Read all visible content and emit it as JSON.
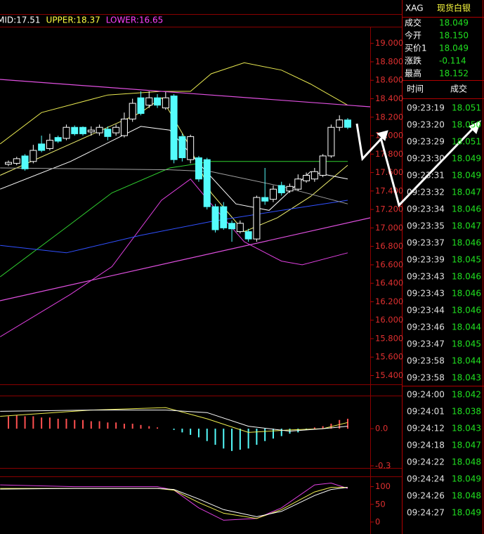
{
  "chart_data": [
    {
      "type": "candlestick",
      "legend": [
        {
          "text": "MID:17.51",
          "color": "#ffffff"
        },
        {
          "text": "UPPER:18.37",
          "color": "#ffff40"
        },
        {
          "text": "LOWER:16.65",
          "color": "#ff40ff"
        }
      ],
      "bull_color": "#ffffff",
      "bear_color": "#54fcfc",
      "open": [
        17.69,
        17.7,
        17.78,
        17.72,
        17.91,
        17.86,
        17.98,
        17.97,
        18.09,
        18.09,
        18.04,
        18.03,
        18.07,
        18.03,
        18.0,
        18.18,
        18.41,
        18.33,
        18.41,
        18.3,
        18.43,
        17.99,
        17.74,
        17.76,
        17.74,
        17.23,
        17.23,
        17.05,
        16.96,
        16.96,
        16.88,
        17.33,
        17.31,
        17.46,
        17.4,
        17.42,
        17.51,
        17.53,
        17.57,
        17.78,
        18.09,
        18.17
      ],
      "high": [
        17.73,
        17.77,
        17.8,
        17.9,
        18.0,
        18.02,
        18.0,
        18.12,
        18.11,
        18.1,
        18.1,
        18.12,
        18.1,
        18.12,
        18.25,
        18.4,
        18.48,
        18.48,
        18.45,
        18.48,
        18.45,
        18.02,
        18.01,
        17.78,
        17.76,
        17.26,
        17.28,
        17.08,
        17.08,
        16.99,
        17.35,
        17.65,
        17.46,
        17.5,
        17.48,
        17.58,
        17.6,
        17.65,
        17.8,
        18.12,
        18.22,
        18.19
      ],
      "low": [
        17.67,
        17.68,
        17.62,
        17.7,
        17.82,
        17.84,
        17.92,
        17.95,
        18.0,
        18.0,
        18.0,
        18.0,
        17.95,
        18.0,
        17.98,
        18.15,
        18.22,
        18.3,
        18.3,
        18.28,
        17.7,
        17.72,
        17.7,
        17.5,
        17.2,
        16.95,
        16.98,
        16.85,
        16.94,
        16.85,
        16.85,
        17.25,
        17.28,
        17.35,
        17.38,
        17.4,
        17.49,
        17.5,
        17.55,
        17.76,
        18.05,
        18.07
      ],
      "close": [
        17.71,
        17.75,
        17.64,
        17.84,
        17.84,
        17.95,
        17.94,
        18.09,
        18.02,
        18.02,
        18.06,
        18.09,
        17.99,
        18.09,
        18.18,
        18.35,
        18.24,
        18.41,
        18.33,
        18.41,
        17.74,
        17.76,
        17.99,
        17.53,
        17.23,
        16.98,
        17.0,
        16.99,
        17.05,
        16.88,
        17.33,
        17.29,
        17.42,
        17.38,
        17.45,
        17.53,
        17.57,
        17.61,
        17.78,
        18.09,
        18.17,
        18.09
      ],
      "lines": [
        {
          "color": "#e8e850",
          "x": [
            -1,
            4,
            12,
            18.5,
            22,
            24.5,
            28.5,
            33,
            36.5,
            41
          ],
          "values": [
            17.91,
            18.25,
            18.44,
            18.48,
            18.48,
            18.67,
            18.79,
            18.71,
            18.56,
            18.33
          ]
        },
        {
          "color": "#e040e0",
          "x": [
            -1,
            7.5,
            12.5,
            18.5,
            22,
            24.5,
            28.5,
            33,
            35.5,
            41
          ],
          "values": [
            15.82,
            16.28,
            16.58,
            17.3,
            17.53,
            17.26,
            16.85,
            16.64,
            16.6,
            16.73
          ]
        },
        {
          "color": "#f0f070",
          "x": [
            -1,
            7.5,
            16,
            18.5,
            21.5,
            24.5,
            28.5,
            32.5,
            36.5,
            41
          ],
          "values": [
            17.57,
            17.91,
            18.25,
            18.41,
            17.95,
            17.38,
            16.96,
            17.11,
            17.34,
            17.68
          ]
        },
        {
          "color": "#ffffff",
          "x": [
            -1,
            7.5,
            16,
            19.5,
            23.5,
            27.5,
            31.5,
            36.5,
            41
          ],
          "values": [
            17.42,
            17.72,
            18.1,
            18.06,
            17.65,
            17.26,
            17.19,
            17.61,
            17.53
          ]
        },
        {
          "color": "#30d030",
          "x": [
            -1,
            7.5,
            12.5,
            19.5,
            24.5,
            33,
            41
          ],
          "values": [
            16.47,
            17.04,
            17.38,
            17.65,
            17.72,
            17.72,
            17.72
          ]
        },
        {
          "color": "#3050ff",
          "x": [
            -1,
            7,
            16,
            24.5,
            33,
            41
          ],
          "values": [
            16.81,
            16.73,
            16.92,
            17.07,
            17.19,
            17.3
          ]
        },
        {
          "color": "#a0a0a0",
          "x": [
            -1,
            19.5,
            24.5,
            33,
            41
          ],
          "values": [
            17.65,
            17.63,
            17.61,
            17.45,
            17.26
          ]
        }
      ],
      "ylim": [
        15.32,
        19.15
      ],
      "yticks": [
        {
          "value": 19.0,
          "label": "19.000"
        },
        {
          "value": 18.8,
          "label": "18.800"
        },
        {
          "value": 18.6,
          "label": "18.600"
        },
        {
          "value": 18.4,
          "label": "18.400"
        },
        {
          "value": 18.2,
          "label": "18.200"
        },
        {
          "value": 18.0,
          "label": "18.000"
        },
        {
          "value": 17.8,
          "label": "17.800"
        },
        {
          "value": 17.6,
          "label": "17.600"
        },
        {
          "value": 17.4,
          "label": "17.400"
        },
        {
          "value": 17.2,
          "label": "17.200"
        },
        {
          "value": 17.0,
          "label": "17.000"
        },
        {
          "value": 16.8,
          "label": "16.800"
        },
        {
          "value": 16.6,
          "label": "16.600"
        },
        {
          "value": 16.4,
          "label": "16.400"
        },
        {
          "value": 16.2,
          "label": "16.200"
        },
        {
          "value": 16.0,
          "label": "16.000"
        },
        {
          "value": 15.8,
          "label": "15.800"
        },
        {
          "value": 15.6,
          "label": "15.600"
        },
        {
          "value": 15.4,
          "label": "15.400"
        }
      ]
    },
    {
      "type": "macd",
      "pos_color": "#ff5050",
      "neg_color": "#54fcfc",
      "values": [
        0.1,
        0.11,
        0.1,
        0.1,
        0.09,
        0.09,
        0.08,
        0.08,
        0.07,
        0.07,
        0.06,
        0.06,
        0.05,
        0.05,
        0.04,
        0.04,
        0.03,
        0.02,
        0.01,
        0.0,
        -0.01,
        -0.03,
        -0.05,
        -0.07,
        -0.1,
        -0.13,
        -0.16,
        -0.18,
        -0.17,
        -0.16,
        -0.13,
        -0.1,
        -0.08,
        -0.06,
        -0.04,
        -0.03,
        -0.01,
        0.01,
        0.02,
        0.04,
        0.07,
        0.08
      ],
      "lines": [
        {
          "color": "#f0f050",
          "x": [
            -1,
            10,
            19,
            24,
            29,
            34,
            38,
            41
          ],
          "values": [
            0.1,
            0.15,
            0.17,
            0.08,
            -0.03,
            -0.01,
            0.0,
            0.05
          ]
        },
        {
          "color": "#ffffff",
          "x": [
            -1,
            10,
            19,
            24,
            29,
            34,
            38,
            41
          ],
          "values": [
            0.14,
            0.15,
            0.15,
            0.13,
            0.02,
            -0.02,
            0.0,
            0.02
          ]
        }
      ],
      "ylim": [
        -0.3,
        0.25
      ],
      "yticks": [
        {
          "value": 0,
          "label": "0.0"
        },
        {
          "value": -0.3,
          "label": "-0.3"
        }
      ]
    },
    {
      "type": "line",
      "lines": [
        {
          "color": "#e040e0",
          "x": [
            -1,
            8,
            18,
            20,
            23,
            26,
            30,
            33,
            37,
            39,
            41
          ],
          "values": [
            105,
            100,
            100,
            90,
            40,
            5,
            10,
            40,
            105,
            110,
            95
          ]
        },
        {
          "color": "#f0f050",
          "x": [
            -1,
            8,
            18,
            20,
            23,
            26,
            30,
            33,
            37,
            39,
            41
          ],
          "values": [
            95,
            95,
            95,
            90,
            55,
            25,
            10,
            35,
            85,
            98,
            98
          ]
        },
        {
          "color": "#ffffff",
          "x": [
            -1,
            8,
            18,
            20,
            23,
            26,
            30,
            33,
            37,
            39,
            41
          ],
          "values": [
            93,
            95,
            95,
            92,
            65,
            35,
            15,
            30,
            75,
            92,
            98
          ]
        }
      ],
      "ylim": [
        -14,
        123
      ],
      "yticks": [
        100,
        50,
        0
      ]
    }
  ],
  "quote_panel": {
    "symbol": "XAG",
    "name": "现货白银",
    "value_color": "#20e020",
    "rows": [
      {
        "label": "成交",
        "value": "18.049"
      },
      {
        "label": "今开",
        "value": "18.150"
      },
      {
        "label": "买价1",
        "value": "18.049"
      },
      {
        "label": "涨跌",
        "value": "-0.114"
      },
      {
        "label": "最高",
        "value": "18.152"
      }
    ],
    "trades_header": [
      "时间",
      "成交"
    ],
    "trades": [
      [
        "09:23:19",
        "18.051"
      ],
      [
        "09:23:20",
        "18.050"
      ],
      [
        "09:23:29",
        "18.051"
      ],
      [
        "09:23:30",
        "18.049"
      ],
      [
        "09:23:31",
        "18.049"
      ],
      [
        "09:23:32",
        "18.047"
      ],
      [
        "09:23:34",
        "18.046"
      ],
      [
        "09:23:35",
        "18.047"
      ],
      [
        "09:23:37",
        "18.046"
      ],
      [
        "09:23:39",
        "18.045"
      ],
      [
        "09:23:43",
        "18.046"
      ],
      [
        "09:23:43",
        "18.046"
      ],
      [
        "09:23:44",
        "18.046"
      ],
      [
        "09:23:46",
        "18.044"
      ],
      [
        "09:23:47",
        "18.045"
      ],
      [
        "09:23:58",
        "18.044"
      ],
      [
        "09:23:58",
        "18.043"
      ],
      [
        "09:24:00",
        "18.042"
      ],
      [
        "09:24:01",
        "18.038"
      ],
      [
        "09:24:12",
        "18.043"
      ],
      [
        "09:24:18",
        "18.047"
      ],
      [
        "09:24:22",
        "18.048"
      ],
      [
        "09:24:24",
        "18.049"
      ],
      [
        "09:24:26",
        "18.048"
      ],
      [
        "09:24:27",
        "18.049"
      ]
    ]
  }
}
